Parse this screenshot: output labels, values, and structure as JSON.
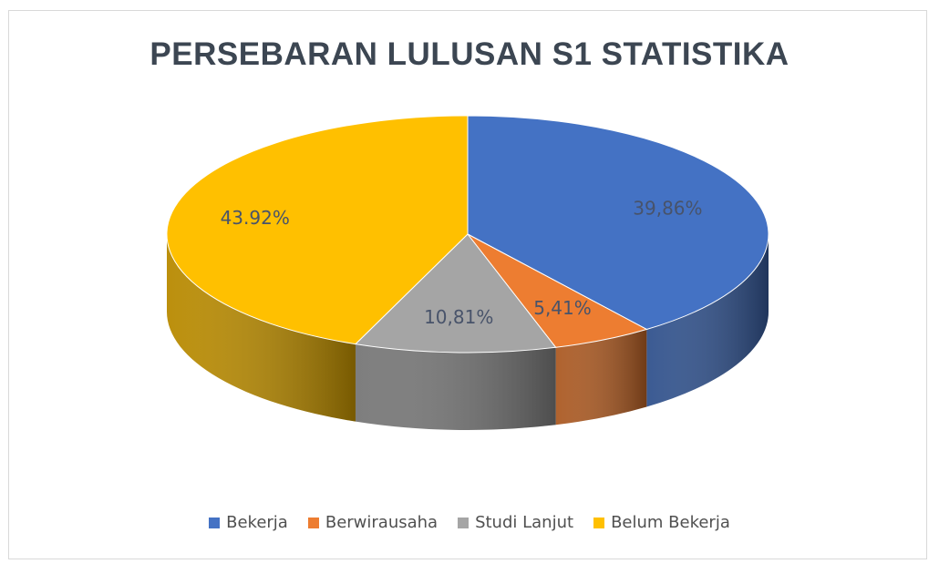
{
  "chart_data": {
    "type": "pie",
    "title": "PERSEBARAN LULUSAN S1 STATISTIKA",
    "categories": [
      "Bekerja",
      "Berwirausaha",
      "Studi Lanjut",
      "Belum Bekerja"
    ],
    "values": [
      39.86,
      5.41,
      10.81,
      43.92
    ],
    "value_labels": [
      "39,86%",
      "5,41%",
      "10,81%",
      "43.92%"
    ],
    "colors": [
      "#4472c4",
      "#ed7d31",
      "#a5a5a5",
      "#ffc000"
    ],
    "legend_position": "bottom",
    "style": "3d"
  }
}
